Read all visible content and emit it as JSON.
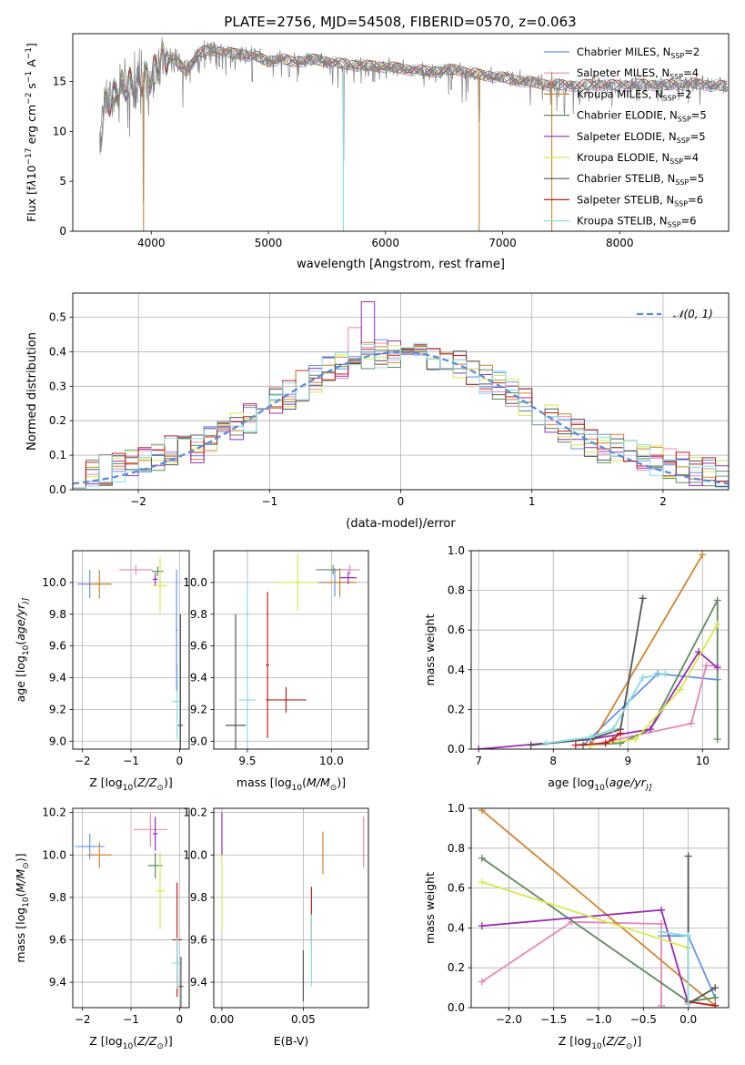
{
  "figure": {
    "title": "PLATE=2756, MJD=54508, FIBERID=0570, z=0.063"
  },
  "legend_models": [
    {
      "label": "Chabrier MILES, N",
      "nssp": "=2",
      "color": "#6495ED"
    },
    {
      "label": "Salpeter MILES, N",
      "nssp": "=4",
      "color": "#E887B6"
    },
    {
      "label": "Kroupa MILES, N",
      "nssp": "=2",
      "color": "#D2842F"
    },
    {
      "label": "Chabrier ELODIE, N",
      "nssp": "=5",
      "color": "#5E8B60"
    },
    {
      "label": "Salpeter ELODIE, N",
      "nssp": "=5",
      "color": "#9B2BB5"
    },
    {
      "label": "Kroupa ELODIE, N",
      "nssp": "=4",
      "color": "#D6EA4C"
    },
    {
      "label": "Chabrier STELIB, N",
      "nssp": "=5",
      "color": "#555555"
    },
    {
      "label": "Salpeter STELIB, N",
      "nssp": "=6",
      "color": "#C0201A"
    },
    {
      "label": "Kroupa STELIB, N",
      "nssp": "=6",
      "color": "#88DDE0"
    }
  ],
  "ssp_subscript": "SSP",
  "chart_data": [
    {
      "id": "spectrum",
      "type": "line",
      "xlabel": "wavelength [Angstrom, rest frame]",
      "ylabel_parts": [
        "Flux [f",
        "λ",
        "10",
        "−17",
        " erg cm",
        "−2",
        " s",
        "−1",
        " A",
        "−1",
        "]"
      ],
      "xlim": [
        3330,
        8930
      ],
      "ylim": [
        0,
        19.8
      ],
      "xticks": [
        4000,
        5000,
        6000,
        7000,
        8000
      ],
      "yticks": [
        0,
        5,
        10,
        15
      ],
      "data_color": "#808080",
      "data_anchors": [
        [
          3560,
          8.5
        ],
        [
          3600,
          12.5
        ],
        [
          3700,
          14.0
        ],
        [
          3800,
          14.8
        ],
        [
          3900,
          15.0
        ],
        [
          4000,
          15.5
        ],
        [
          4100,
          17.5
        ],
        [
          4200,
          17.2
        ],
        [
          4300,
          16.0
        ],
        [
          4400,
          17.8
        ],
        [
          4500,
          18.2
        ],
        [
          4600,
          18.0
        ],
        [
          4700,
          17.8
        ],
        [
          4800,
          17.7
        ],
        [
          4900,
          17.5
        ],
        [
          5000,
          17.0
        ],
        [
          5100,
          17.3
        ],
        [
          5200,
          17.0
        ],
        [
          5400,
          17.2
        ],
        [
          5600,
          16.8
        ],
        [
          5800,
          16.6
        ],
        [
          6000,
          16.5
        ],
        [
          6200,
          16.2
        ],
        [
          6400,
          16.0
        ],
        [
          6600,
          16.2
        ],
        [
          6800,
          15.7
        ],
        [
          7000,
          15.4
        ],
        [
          7200,
          15.0
        ],
        [
          7400,
          14.7
        ],
        [
          7600,
          14.6
        ],
        [
          7800,
          14.7
        ],
        [
          8000,
          14.6
        ],
        [
          8200,
          14.7
        ],
        [
          8400,
          14.6
        ],
        [
          8600,
          14.8
        ],
        [
          8800,
          14.6
        ],
        [
          8920,
          14.5
        ]
      ],
      "data_dips": [
        [
          3934,
          3.0
        ],
        [
          4861,
          15.0
        ],
        [
          5176,
          15.5
        ],
        [
          5640,
          7.0
        ],
        [
          5894,
          15.0
        ],
        [
          6563,
          14.2
        ],
        [
          6800,
          11.0
        ]
      ],
      "model_end_x": [
        8920,
        8920,
        7420,
        8920,
        8920,
        8920,
        8920,
        8920,
        8920
      ]
    },
    {
      "id": "residuals",
      "type": "histogram",
      "xlabel": "(data-model)/error",
      "ylabel": "Normed distribution",
      "xlim": [
        -2.5,
        2.5
      ],
      "ylim": [
        0,
        0.57
      ],
      "xticks": [
        -2,
        -1,
        0,
        1,
        2
      ],
      "xtick_labels": [
        "−2",
        "−1",
        "0",
        "1",
        "2"
      ],
      "yticks": [
        0.0,
        0.1,
        0.2,
        0.3,
        0.4,
        0.5
      ],
      "ytick_labels": [
        "0.0",
        "0.1",
        "0.2",
        "0.3",
        "0.4",
        "0.5"
      ],
      "bin_width": 0.1,
      "reference_curve": {
        "label": "𝒩(0, 1)",
        "color": "#5B8FD8",
        "mean": 0,
        "sigma": 1
      }
    },
    {
      "id": "age-vs-Z",
      "type": "errorbar",
      "xlabel_parts": [
        "Z [log",
        "10",
        "(",
        "Z/Z",
        "⊙",
        ")]"
      ],
      "ylabel_parts": [
        "age  [log",
        "10",
        "(",
        "age/yr",
        ")]"
      ],
      "xlim": [
        -2.2,
        0.2
      ],
      "ylim": [
        8.95,
        10.2
      ],
      "xticks": [
        -2,
        -1,
        0
      ],
      "xtick_labels": [
        "−2",
        "−1",
        "0"
      ],
      "yticks": [
        9.0,
        9.2,
        9.4,
        9.6,
        9.8,
        10.0
      ],
      "ytick_labels": [
        "9.0",
        "9.2",
        "9.4",
        "9.6",
        "9.8",
        "10.0"
      ],
      "points": [
        {
          "m": 0,
          "x": -1.85,
          "y": 9.99,
          "xerr": 0.25,
          "yerr": 0.09
        },
        {
          "m": 2,
          "x": -1.65,
          "y": 9.99,
          "xerr": 0.25,
          "yerr": 0.09
        },
        {
          "m": 1,
          "x": -0.9,
          "y": 10.08,
          "xerr": 0.35,
          "yerr": 0.03
        },
        {
          "m": 3,
          "x": -0.45,
          "y": 10.07,
          "xerr": 0.12,
          "yerr": 0.03
        },
        {
          "m": 4,
          "x": -0.5,
          "y": 10.02,
          "xerr": 0.05,
          "yerr": 0.04
        },
        {
          "m": 5,
          "x": -0.4,
          "y": 9.98,
          "xerr": 0.15,
          "yerr": 0.18
        },
        {
          "m": 8,
          "x": -0.05,
          "y": 9.25,
          "xerr": 0.1,
          "yerr": 0.24
        },
        {
          "m": 6,
          "x": 0.02,
          "y": 9.1,
          "xerr": 0.05,
          "yerr": 0.7
        },
        {
          "m": 0,
          "x": -0.06,
          "y": 9.7,
          "xerr": 0.02,
          "yerr": 0.38
        }
      ]
    },
    {
      "id": "age-vs-mass",
      "type": "errorbar",
      "xlabel_parts": [
        "mass [log",
        "10",
        "(",
        "M/M",
        "⊙",
        ")]"
      ],
      "ylabel": "",
      "xlim": [
        9.3,
        10.22
      ],
      "ylim": [
        8.95,
        10.2
      ],
      "xticks": [
        9.5,
        10.0
      ],
      "xtick_labels": [
        "9.5",
        "10.0"
      ],
      "yticks": [
        9.0,
        9.2,
        9.4,
        9.6,
        9.8,
        10.0
      ],
      "ytick_labels": [
        "9.0",
        "9.2",
        "9.4",
        "9.6",
        "9.8",
        "10.0"
      ],
      "points": [
        {
          "m": 6,
          "x": 9.43,
          "y": 9.1,
          "xerr": 0.06,
          "yerr": 0.7
        },
        {
          "m": 8,
          "x": 9.5,
          "y": 9.26,
          "xerr": 0.05,
          "yerr": 0.75
        },
        {
          "m": 7,
          "x": 9.73,
          "y": 9.26,
          "xerr": 0.12,
          "yerr": 0.08
        },
        {
          "m": 7,
          "x": 9.62,
          "y": 9.48,
          "xerr": 0.01,
          "yerr": 0.46
        },
        {
          "m": 5,
          "x": 9.8,
          "y": 10.0,
          "xerr": 0.12,
          "yerr": 0.18
        },
        {
          "m": 0,
          "x": 10.02,
          "y": 10.0,
          "xerr": 0.1,
          "yerr": 0.09
        },
        {
          "m": 2,
          "x": 10.05,
          "y": 10.0,
          "xerr": 0.1,
          "yerr": 0.09
        },
        {
          "m": 3,
          "x": 10.01,
          "y": 10.08,
          "xerr": 0.1,
          "yerr": 0.03
        },
        {
          "m": 4,
          "x": 10.1,
          "y": 10.03,
          "xerr": 0.05,
          "yerr": 0.04
        },
        {
          "m": 1,
          "x": 10.11,
          "y": 10.08,
          "xerr": 0.06,
          "yerr": 0.03
        }
      ]
    },
    {
      "id": "weight-vs-age",
      "type": "line",
      "xlabel_parts": [
        "age  [log",
        "10",
        "(",
        "age/yr",
        ")]"
      ],
      "ylabel": "mass weight",
      "xlim": [
        6.9,
        10.35
      ],
      "ylim": [
        0,
        1.0
      ],
      "xticks": [
        7,
        8,
        9,
        10
      ],
      "xtick_labels": [
        "7",
        "8",
        "9",
        "10"
      ],
      "yticks": [
        0.0,
        0.2,
        0.4,
        0.6,
        0.8,
        1.0
      ],
      "ytick_labels": [
        "0.0",
        "0.2",
        "0.4",
        "0.6",
        "0.8",
        "1.0"
      ],
      "series": [
        {
          "m": 0,
          "x": [
            8.4,
            9.4,
            10.2
          ],
          "y": [
            0.02,
            0.38,
            0.35
          ]
        },
        {
          "m": 1,
          "x": [
            8.5,
            9.85,
            10.05,
            10.2
          ],
          "y": [
            0.02,
            0.13,
            0.42,
            0.42
          ]
        },
        {
          "m": 2,
          "x": [
            8.5,
            10.0
          ],
          "y": [
            0.02,
            0.98
          ]
        },
        {
          "m": 3,
          "x": [
            8.4,
            8.9,
            9.3,
            10.2,
            10.2
          ],
          "y": [
            0.02,
            0.03,
            0.1,
            0.75,
            0.05
          ]
        },
        {
          "m": 4,
          "x": [
            7.0,
            8.5,
            9.3,
            9.95,
            10.2
          ],
          "y": [
            0.0,
            0.05,
            0.1,
            0.49,
            0.41
          ]
        },
        {
          "m": 5,
          "x": [
            8.5,
            9.1,
            9.7,
            10.2
          ],
          "y": [
            0.02,
            0.05,
            0.3,
            0.63
          ]
        },
        {
          "m": 6,
          "x": [
            7.7,
            8.5,
            8.9,
            9.2
          ],
          "y": [
            0.02,
            0.05,
            0.1,
            0.76
          ]
        },
        {
          "m": 7,
          "x": [
            8.3,
            8.7,
            8.8,
            8.9
          ],
          "y": [
            0.02,
            0.03,
            0.05,
            0.08
          ]
        },
        {
          "m": 8,
          "x": [
            7.9,
            8.5,
            8.8,
            9.2,
            9.5
          ],
          "y": [
            0.03,
            0.06,
            0.1,
            0.36,
            0.38
          ]
        }
      ]
    },
    {
      "id": "mass-vs-Z",
      "type": "errorbar",
      "xlabel_parts": [
        "Z [log",
        "10",
        "(",
        "Z/Z",
        "⊙",
        ")]"
      ],
      "ylabel_parts": [
        "mass [log",
        "10",
        "(",
        "M/M",
        "⊙",
        ")]"
      ],
      "xlim": [
        -2.2,
        0.2
      ],
      "ylim": [
        9.28,
        10.22
      ],
      "xticks": [
        -2,
        -1,
        0
      ],
      "xtick_labels": [
        "−2",
        "−1",
        "0"
      ],
      "yticks": [
        9.4,
        9.6,
        9.8,
        10.0,
        10.2
      ],
      "ytick_labels": [
        "9.4",
        "9.6",
        "9.8",
        "10.0",
        "10.2"
      ],
      "points": [
        {
          "m": 0,
          "x": -1.85,
          "y": 10.04,
          "xerr": 0.3,
          "yerr": 0.06
        },
        {
          "m": 2,
          "x": -1.65,
          "y": 10.0,
          "xerr": 0.25,
          "yerr": 0.06
        },
        {
          "m": 1,
          "x": -0.6,
          "y": 10.12,
          "xerr": 0.35,
          "yerr": 0.08
        },
        {
          "m": 4,
          "x": -0.5,
          "y": 10.1,
          "xerr": 0.05,
          "yerr": 0.08
        },
        {
          "m": 3,
          "x": -0.5,
          "y": 9.95,
          "xerr": 0.15,
          "yerr": 0.06
        },
        {
          "m": 5,
          "x": -0.4,
          "y": 9.83,
          "xerr": 0.1,
          "yerr": 0.18
        },
        {
          "m": 7,
          "x": -0.05,
          "y": 9.6,
          "xerr": 0.1,
          "yerr": 0.27
        },
        {
          "m": 8,
          "x": -0.05,
          "y": 9.49,
          "xerr": 0.1,
          "yerr": 0.12
        },
        {
          "m": 6,
          "x": 0.03,
          "y": 9.38,
          "xerr": 0.05,
          "yerr": 0.14
        }
      ]
    },
    {
      "id": "mass-vs-ebv",
      "type": "errorbar",
      "xlabel": "E(B-V)",
      "ylabel": "",
      "xlim": [
        -0.005,
        0.09
      ],
      "ylim": [
        9.28,
        10.22
      ],
      "xticks": [
        0.0,
        0.05
      ],
      "xtick_labels": [
        "0.00",
        "0.05"
      ],
      "yticks": [
        9.4,
        9.6,
        9.8,
        10.0,
        10.2
      ],
      "ytick_labels": [
        "9.4",
        "9.6",
        "9.8",
        "10.0",
        "10.2"
      ],
      "points": [
        {
          "m": 4,
          "x": 0.0,
          "y": 10.1,
          "xerr": 0.0,
          "yerr": 0.1
        },
        {
          "m": 5,
          "x": 0.0,
          "y": 9.82,
          "xerr": 0.0,
          "yerr": 0.18
        },
        {
          "m": 6,
          "x": 0.05,
          "y": 9.43,
          "xerr": 0.0,
          "yerr": 0.12
        },
        {
          "m": 7,
          "x": 0.055,
          "y": 9.72,
          "xerr": 0.0,
          "yerr": 0.13
        },
        {
          "m": 8,
          "x": 0.055,
          "y": 9.55,
          "xerr": 0.0,
          "yerr": 0.17
        },
        {
          "m": 2,
          "x": 0.062,
          "y": 10.01,
          "xerr": 0.0,
          "yerr": 0.1
        },
        {
          "m": 1,
          "x": 0.087,
          "y": 10.06,
          "xerr": 0.0,
          "yerr": 0.12
        }
      ]
    },
    {
      "id": "weight-vs-Z",
      "type": "line",
      "xlabel_parts": [
        "Z [log",
        "10",
        "(",
        "Z/Z",
        "⊙",
        ")]"
      ],
      "ylabel": "mass weight",
      "xlim": [
        -2.42,
        0.45
      ],
      "ylim": [
        0,
        1.0
      ],
      "xticks": [
        -2.0,
        -1.5,
        -1.0,
        -0.5,
        0.0
      ],
      "xtick_labels": [
        "−2.0",
        "−1.5",
        "−1.0",
        "−0.5",
        "0.0"
      ],
      "yticks": [
        0.0,
        0.2,
        0.4,
        0.6,
        0.8,
        1.0
      ],
      "ytick_labels": [
        "0.0",
        "0.2",
        "0.4",
        "0.6",
        "0.8",
        "1.0"
      ],
      "series": [
        {
          "m": 0,
          "x": [
            -0.3,
            0.0,
            0.3
          ],
          "y": [
            0.36,
            0.36,
            0.05
          ]
        },
        {
          "m": 1,
          "x": [
            -2.3,
            -1.3,
            -0.3,
            -0.3
          ],
          "y": [
            0.13,
            0.43,
            0.42,
            0.01
          ]
        },
        {
          "m": 2,
          "x": [
            -2.3,
            0.3
          ],
          "y": [
            0.99,
            0.01
          ]
        },
        {
          "m": 3,
          "x": [
            -2.3,
            0.0,
            0.3
          ],
          "y": [
            0.75,
            0.03,
            0.05
          ]
        },
        {
          "m": 4,
          "x": [
            -2.3,
            -0.3,
            0.0
          ],
          "y": [
            0.41,
            0.49,
            0.02
          ]
        },
        {
          "m": 5,
          "x": [
            -2.3,
            0.0
          ],
          "y": [
            0.63,
            0.3
          ]
        },
        {
          "m": 6,
          "x": [
            0.0,
            0.0,
            0.3
          ],
          "y": [
            0.76,
            0.02,
            0.1
          ]
        },
        {
          "m": 7,
          "x": [
            0.0,
            0.3
          ],
          "y": [
            0.03,
            0.01
          ]
        },
        {
          "m": 8,
          "x": [
            -0.3,
            0.0,
            0.0
          ],
          "y": [
            0.38,
            0.36,
            0.02
          ]
        }
      ]
    }
  ]
}
